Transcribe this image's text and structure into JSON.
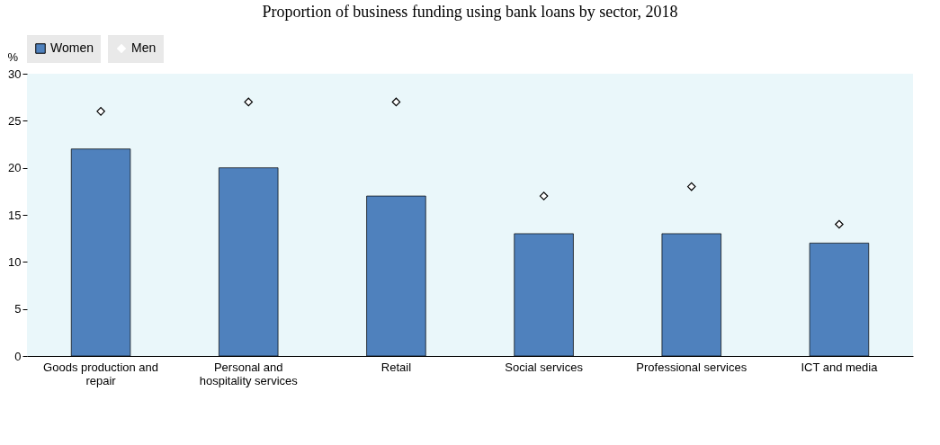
{
  "chart_data": {
    "type": "bar",
    "title": "Proportion of business funding using bank loans by sector, 2018",
    "ylabel": "%",
    "categories": [
      "Goods production and repair",
      "Personal and hospitality services",
      "Retail",
      "Social services",
      "Professional services",
      "ICT and media"
    ],
    "series": [
      {
        "name": "Women",
        "color": "#4f81bd",
        "values": [
          22,
          20,
          17,
          13,
          13,
          12
        ]
      },
      {
        "name": "Men",
        "type": "scatter",
        "color": "#000000",
        "values": [
          26,
          27,
          27,
          17,
          18,
          14
        ]
      }
    ],
    "marker": "diamond",
    "ylim": [
      0,
      30
    ],
    "yticks": [
      0,
      5,
      10,
      15,
      20,
      25,
      30
    ],
    "grid": false,
    "legend": "top"
  }
}
